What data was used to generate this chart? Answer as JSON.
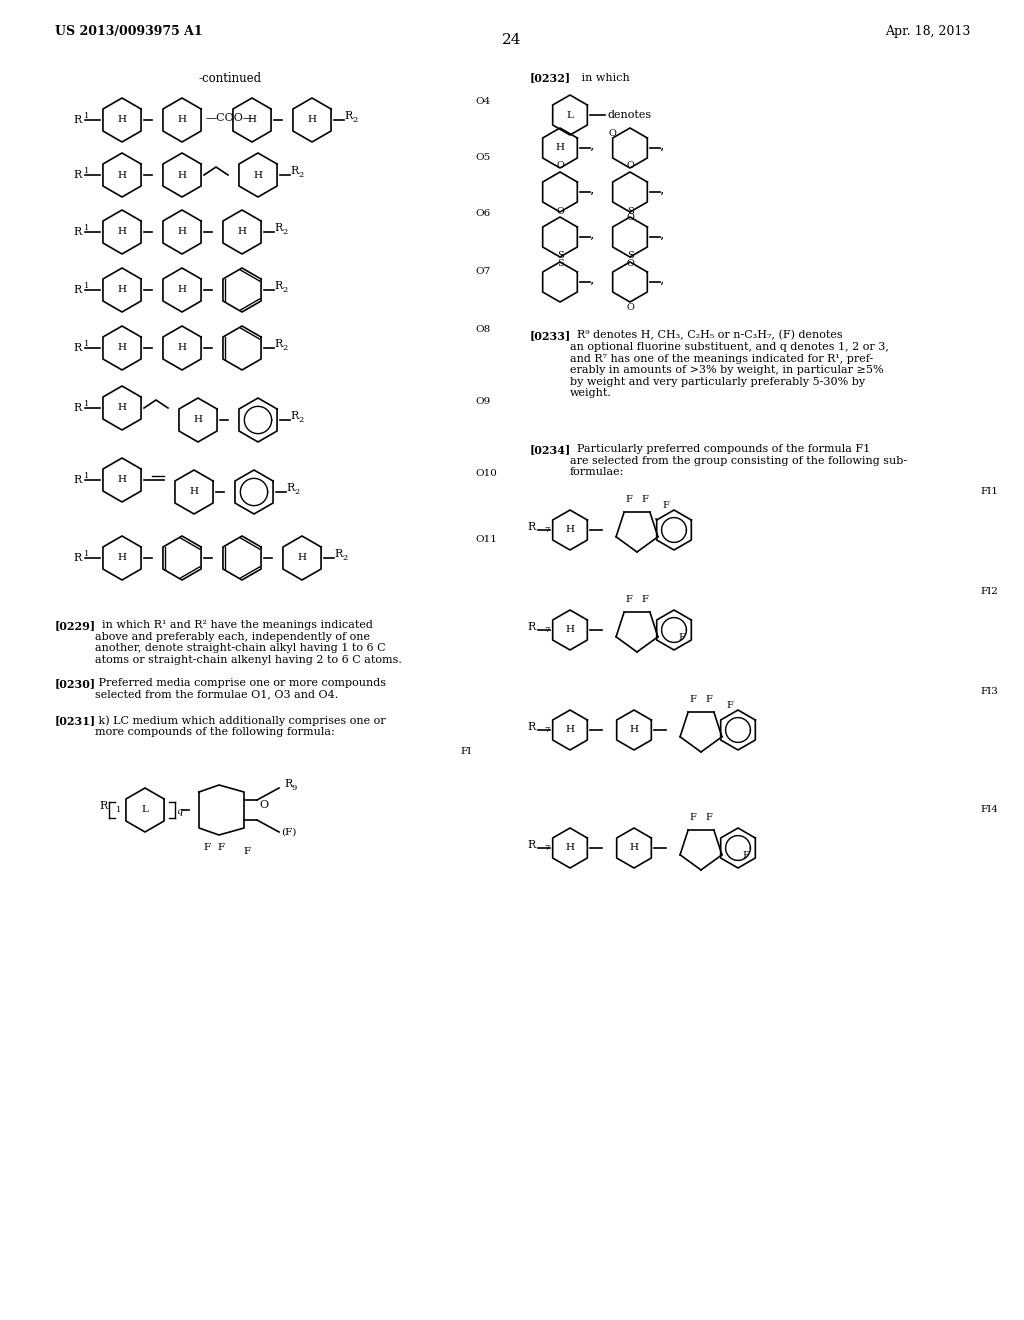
{
  "page_header_left": "US 2013/0093975 A1",
  "page_header_right": "Apr. 18, 2013",
  "page_number": "24",
  "continued_label": "-continued",
  "background_color": "#ffffff",
  "text_color": "#000000"
}
